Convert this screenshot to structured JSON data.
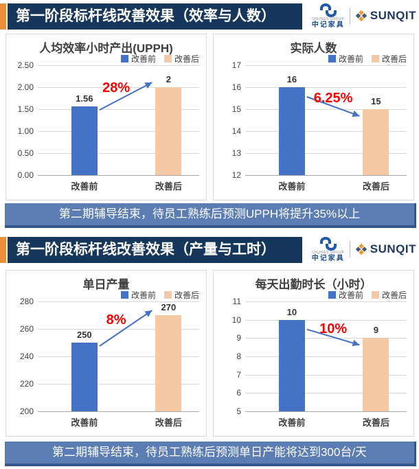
{
  "colors": {
    "before": "#4472C4",
    "after": "#F5C9A4",
    "accent_orange": "#E8913A",
    "header_navy": "#16365C",
    "banner_blue": "#5B7DB3",
    "banner_border": "#34558b",
    "percent_red": "#FF0000",
    "arrow_blue": "#4472C4"
  },
  "logo": {
    "chungs_tiny": "CHUNGS GROUP",
    "chungs_name": "中记家具",
    "sunqit_word": "SUNQIT"
  },
  "sections": [
    {
      "header": "第一阶段标杆线改善效果（效率与人数）",
      "footer": "第二期辅导结束，待员工熟练后预测UPPH将提升35%以上"
    },
    {
      "header": "第一阶段标杆线改善效果（产量与工时）",
      "footer": "第二期辅导结束，待员工熟练后预测单日产能将达到300台/天"
    }
  ],
  "chart_data": [
    {
      "type": "bar",
      "title": "人均效率小时产出(UPPH)",
      "categories": [
        "改善前",
        "改善后"
      ],
      "values": [
        1.56,
        2
      ],
      "value_labels": [
        "1.56",
        "2"
      ],
      "change_label": "28%",
      "trend": "up",
      "legend": [
        "改善前",
        "改善后"
      ],
      "legend_position": "top-right",
      "grid": true,
      "ylim": [
        0,
        2.5
      ],
      "yticks": [
        0,
        0.5,
        1,
        1.5,
        2,
        2.5
      ],
      "ytick_labels": [
        "0.00",
        "0.50",
        "1.00",
        "1.50",
        "2.00",
        "2.50"
      ]
    },
    {
      "type": "bar",
      "title": "实际人数",
      "categories": [
        "改善前",
        "改善后"
      ],
      "values": [
        16,
        15
      ],
      "value_labels": [
        "16",
        "15"
      ],
      "change_label": "6.25%",
      "trend": "down",
      "legend": [
        "改善前",
        "改善后"
      ],
      "legend_position": "top-right",
      "grid": true,
      "ylim": [
        12,
        17
      ],
      "yticks": [
        12,
        13,
        14,
        15,
        16,
        17
      ],
      "ytick_labels": [
        "12",
        "13",
        "14",
        "15",
        "16",
        "17"
      ]
    },
    {
      "type": "bar",
      "title": "单日产量",
      "categories": [
        "改善前",
        "改善后"
      ],
      "values": [
        250,
        270
      ],
      "value_labels": [
        "250",
        "270"
      ],
      "change_label": "8%",
      "trend": "up",
      "legend": [
        "改善前",
        "改善后"
      ],
      "legend_position": "top-right",
      "grid": true,
      "ylim": [
        200,
        280
      ],
      "yticks": [
        200,
        220,
        240,
        260,
        280
      ],
      "ytick_labels": [
        "200",
        "220",
        "240",
        "260",
        "280"
      ]
    },
    {
      "type": "bar",
      "title": "每天出勤时长（小时）",
      "categories": [
        "改善前",
        "改善后"
      ],
      "values": [
        10,
        9
      ],
      "value_labels": [
        "10",
        "9"
      ],
      "change_label": "10%",
      "trend": "down",
      "legend": [
        "改善前",
        "改善后"
      ],
      "legend_position": "top-right",
      "grid": true,
      "ylim": [
        5,
        11
      ],
      "yticks": [
        5,
        6,
        7,
        8,
        9,
        10,
        11
      ],
      "ytick_labels": [
        "5",
        "6",
        "7",
        "8",
        "9",
        "10",
        "11"
      ]
    }
  ]
}
